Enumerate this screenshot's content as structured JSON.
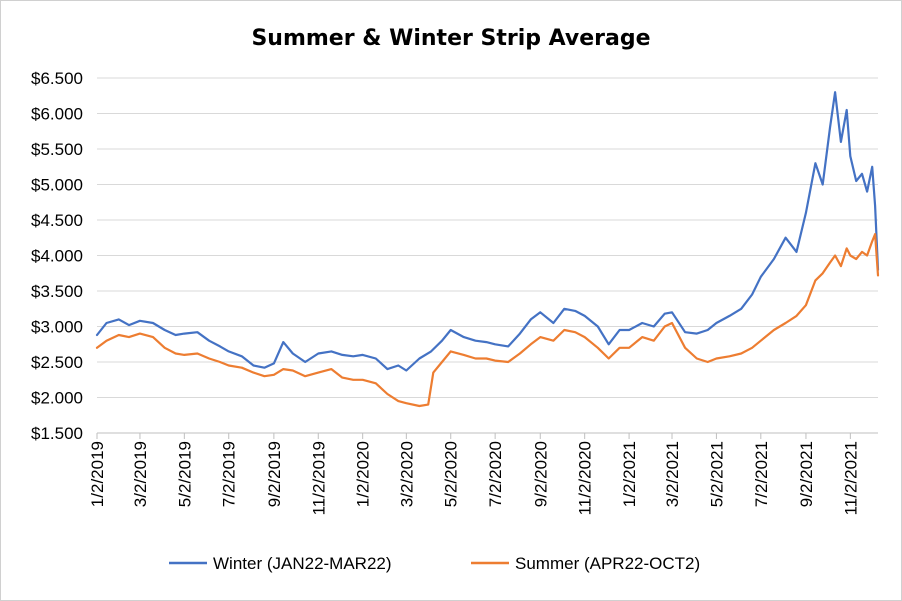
{
  "chart_data": {
    "type": "line",
    "title": "Summer & Winter Strip Average",
    "xlabel": "",
    "ylabel": "",
    "ylim": [
      1.5,
      6.5
    ],
    "xlim": [
      "2019-01-02",
      "2021-12-10"
    ],
    "y_ticks": [
      1.5,
      2.0,
      2.5,
      3.0,
      3.5,
      4.0,
      4.5,
      5.0,
      5.5,
      6.0,
      6.5
    ],
    "y_tick_labels": [
      "$1.500",
      "$2.000",
      "$2.500",
      "$3.000",
      "$3.500",
      "$4.000",
      "$4.500",
      "$5.000",
      "$5.500",
      "$6.000",
      "$6.500"
    ],
    "x_ticks": [
      "2019-01-02",
      "2019-03-02",
      "2019-05-02",
      "2019-07-02",
      "2019-09-02",
      "2019-11-02",
      "2020-01-02",
      "2020-03-02",
      "2020-05-02",
      "2020-07-02",
      "2020-09-02",
      "2020-11-02",
      "2021-01-02",
      "2021-03-02",
      "2021-05-02",
      "2021-07-02",
      "2021-09-02",
      "2021-11-02"
    ],
    "x_tick_labels": [
      "1/2/2019",
      "3/2/2019",
      "5/2/2019",
      "7/2/2019",
      "9/2/2019",
      "11/2/2019",
      "1/2/2020",
      "3/2/2020",
      "5/2/2020",
      "7/2/2020",
      "9/2/2020",
      "11/2/2020",
      "1/2/2021",
      "3/2/2021",
      "5/2/2021",
      "7/2/2021",
      "9/2/2021",
      "11/2/2021"
    ],
    "grid": "horizontal",
    "legend_position": "bottom",
    "series": [
      {
        "name": "Winter (JAN22-MAR22)",
        "color": "#4472c4",
        "points": [
          [
            "2019-01-02",
            2.88
          ],
          [
            "2019-01-15",
            3.05
          ],
          [
            "2019-02-01",
            3.1
          ],
          [
            "2019-02-15",
            3.02
          ],
          [
            "2019-03-02",
            3.08
          ],
          [
            "2019-03-20",
            3.05
          ],
          [
            "2019-04-05",
            2.95
          ],
          [
            "2019-04-20",
            2.88
          ],
          [
            "2019-05-02",
            2.9
          ],
          [
            "2019-05-20",
            2.92
          ],
          [
            "2019-06-05",
            2.8
          ],
          [
            "2019-06-20",
            2.72
          ],
          [
            "2019-07-02",
            2.65
          ],
          [
            "2019-07-20",
            2.58
          ],
          [
            "2019-08-05",
            2.45
          ],
          [
            "2019-08-20",
            2.42
          ],
          [
            "2019-09-02",
            2.48
          ],
          [
            "2019-09-15",
            2.78
          ],
          [
            "2019-09-28",
            2.62
          ],
          [
            "2019-10-15",
            2.5
          ],
          [
            "2019-11-02",
            2.62
          ],
          [
            "2019-11-20",
            2.65
          ],
          [
            "2019-12-05",
            2.6
          ],
          [
            "2019-12-20",
            2.58
          ],
          [
            "2020-01-02",
            2.6
          ],
          [
            "2020-01-20",
            2.55
          ],
          [
            "2020-02-05",
            2.4
          ],
          [
            "2020-02-20",
            2.45
          ],
          [
            "2020-03-02",
            2.38
          ],
          [
            "2020-03-20",
            2.55
          ],
          [
            "2020-04-05",
            2.65
          ],
          [
            "2020-04-20",
            2.8
          ],
          [
            "2020-05-02",
            2.95
          ],
          [
            "2020-05-20",
            2.85
          ],
          [
            "2020-06-05",
            2.8
          ],
          [
            "2020-06-20",
            2.78
          ],
          [
            "2020-07-02",
            2.75
          ],
          [
            "2020-07-20",
            2.72
          ],
          [
            "2020-08-05",
            2.9
          ],
          [
            "2020-08-20",
            3.1
          ],
          [
            "2020-09-02",
            3.2
          ],
          [
            "2020-09-20",
            3.05
          ],
          [
            "2020-10-05",
            3.25
          ],
          [
            "2020-10-20",
            3.22
          ],
          [
            "2020-11-02",
            3.15
          ],
          [
            "2020-11-20",
            3.0
          ],
          [
            "2020-12-05",
            2.75
          ],
          [
            "2020-12-20",
            2.95
          ],
          [
            "2021-01-02",
            2.95
          ],
          [
            "2021-01-20",
            3.05
          ],
          [
            "2021-02-05",
            3.0
          ],
          [
            "2021-02-20",
            3.18
          ],
          [
            "2021-03-02",
            3.2
          ],
          [
            "2021-03-20",
            2.92
          ],
          [
            "2021-04-05",
            2.9
          ],
          [
            "2021-04-20",
            2.95
          ],
          [
            "2021-05-02",
            3.05
          ],
          [
            "2021-05-20",
            3.15
          ],
          [
            "2021-06-05",
            3.25
          ],
          [
            "2021-06-20",
            3.45
          ],
          [
            "2021-07-02",
            3.7
          ],
          [
            "2021-07-20",
            3.95
          ],
          [
            "2021-08-05",
            4.25
          ],
          [
            "2021-08-20",
            4.05
          ],
          [
            "2021-09-02",
            4.6
          ],
          [
            "2021-09-15",
            5.3
          ],
          [
            "2021-09-25",
            5.0
          ],
          [
            "2021-10-05",
            5.8
          ],
          [
            "2021-10-12",
            6.3
          ],
          [
            "2021-10-20",
            5.6
          ],
          [
            "2021-10-28",
            6.05
          ],
          [
            "2021-11-02",
            5.4
          ],
          [
            "2021-11-10",
            5.05
          ],
          [
            "2021-11-18",
            5.15
          ],
          [
            "2021-11-25",
            4.9
          ],
          [
            "2021-12-02",
            5.25
          ],
          [
            "2021-12-06",
            4.7
          ],
          [
            "2021-12-10",
            3.8
          ]
        ]
      },
      {
        "name": "Summer  (APR22-OCT2)",
        "color": "#ed7d31",
        "points": [
          [
            "2019-01-02",
            2.7
          ],
          [
            "2019-01-15",
            2.8
          ],
          [
            "2019-02-01",
            2.88
          ],
          [
            "2019-02-15",
            2.85
          ],
          [
            "2019-03-02",
            2.9
          ],
          [
            "2019-03-20",
            2.85
          ],
          [
            "2019-04-05",
            2.7
          ],
          [
            "2019-04-20",
            2.62
          ],
          [
            "2019-05-02",
            2.6
          ],
          [
            "2019-05-20",
            2.62
          ],
          [
            "2019-06-05",
            2.55
          ],
          [
            "2019-06-20",
            2.5
          ],
          [
            "2019-07-02",
            2.45
          ],
          [
            "2019-07-20",
            2.42
          ],
          [
            "2019-08-05",
            2.35
          ],
          [
            "2019-08-20",
            2.3
          ],
          [
            "2019-09-02",
            2.32
          ],
          [
            "2019-09-15",
            2.4
          ],
          [
            "2019-09-28",
            2.38
          ],
          [
            "2019-10-15",
            2.3
          ],
          [
            "2019-11-02",
            2.35
          ],
          [
            "2019-11-20",
            2.4
          ],
          [
            "2019-12-05",
            2.28
          ],
          [
            "2019-12-20",
            2.25
          ],
          [
            "2020-01-02",
            2.25
          ],
          [
            "2020-01-20",
            2.2
          ],
          [
            "2020-02-05",
            2.05
          ],
          [
            "2020-02-20",
            1.95
          ],
          [
            "2020-03-02",
            1.92
          ],
          [
            "2020-03-20",
            1.88
          ],
          [
            "2020-04-01",
            1.9
          ],
          [
            "2020-04-08",
            2.35
          ],
          [
            "2020-04-20",
            2.5
          ],
          [
            "2020-05-02",
            2.65
          ],
          [
            "2020-05-20",
            2.6
          ],
          [
            "2020-06-05",
            2.55
          ],
          [
            "2020-06-20",
            2.55
          ],
          [
            "2020-07-02",
            2.52
          ],
          [
            "2020-07-20",
            2.5
          ],
          [
            "2020-08-05",
            2.62
          ],
          [
            "2020-08-20",
            2.75
          ],
          [
            "2020-09-02",
            2.85
          ],
          [
            "2020-09-20",
            2.8
          ],
          [
            "2020-10-05",
            2.95
          ],
          [
            "2020-10-20",
            2.92
          ],
          [
            "2020-11-02",
            2.85
          ],
          [
            "2020-11-20",
            2.7
          ],
          [
            "2020-12-05",
            2.55
          ],
          [
            "2020-12-20",
            2.7
          ],
          [
            "2021-01-02",
            2.7
          ],
          [
            "2021-01-20",
            2.85
          ],
          [
            "2021-02-05",
            2.8
          ],
          [
            "2021-02-20",
            3.0
          ],
          [
            "2021-03-02",
            3.05
          ],
          [
            "2021-03-20",
            2.7
          ],
          [
            "2021-04-05",
            2.55
          ],
          [
            "2021-04-20",
            2.5
          ],
          [
            "2021-05-02",
            2.55
          ],
          [
            "2021-05-20",
            2.58
          ],
          [
            "2021-06-05",
            2.62
          ],
          [
            "2021-06-20",
            2.7
          ],
          [
            "2021-07-02",
            2.8
          ],
          [
            "2021-07-20",
            2.95
          ],
          [
            "2021-08-05",
            3.05
          ],
          [
            "2021-08-20",
            3.15
          ],
          [
            "2021-09-02",
            3.3
          ],
          [
            "2021-09-15",
            3.65
          ],
          [
            "2021-09-25",
            3.75
          ],
          [
            "2021-10-05",
            3.9
          ],
          [
            "2021-10-12",
            4.0
          ],
          [
            "2021-10-20",
            3.85
          ],
          [
            "2021-10-28",
            4.1
          ],
          [
            "2021-11-02",
            4.0
          ],
          [
            "2021-11-10",
            3.95
          ],
          [
            "2021-11-18",
            4.05
          ],
          [
            "2021-11-25",
            4.0
          ],
          [
            "2021-12-02",
            4.2
          ],
          [
            "2021-12-06",
            4.3
          ],
          [
            "2021-12-10",
            3.72
          ]
        ]
      }
    ]
  }
}
